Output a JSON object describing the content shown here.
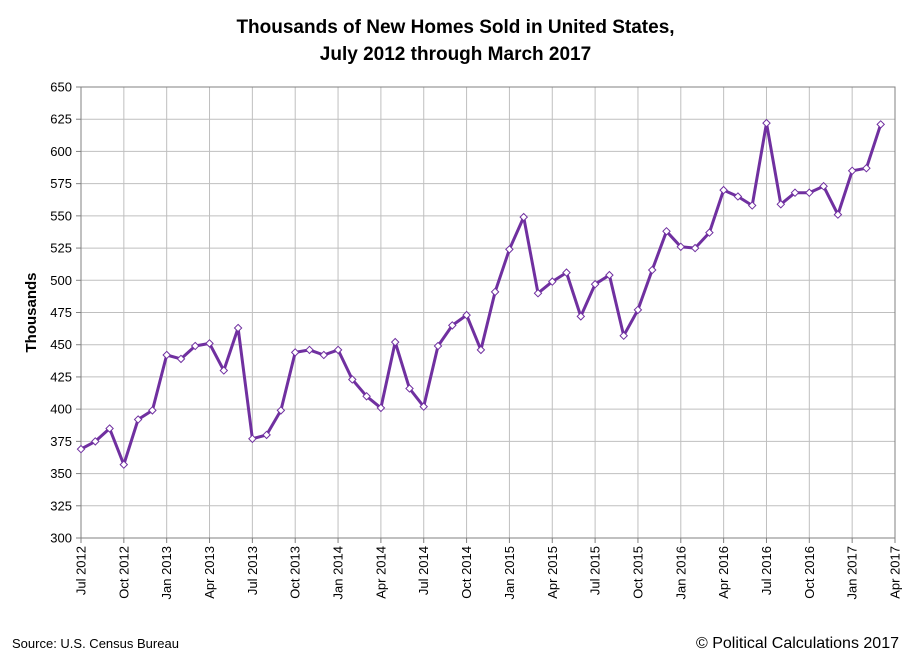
{
  "chart_data": {
    "type": "line",
    "title": [
      "Thousands of New Homes Sold in United States,",
      "July 2012 through March 2017"
    ],
    "ylabel": "Thousands",
    "xlabel": "",
    "ylim": [
      300,
      650
    ],
    "ytick_step": 25,
    "grid": true,
    "series_color": "#7030A0",
    "marker_fill": "#ffffff",
    "xtick_labels": [
      "Jul 2012",
      "Oct 2012",
      "Jan 2013",
      "Apr 2013",
      "Jul 2013",
      "Oct 2013",
      "Jan 2014",
      "Apr 2014",
      "Jul 2014",
      "Oct 2014",
      "Jan 2015",
      "Apr 2015",
      "Jul 2015",
      "Oct 2015",
      "Jan 2016",
      "Apr 2016",
      "Jul 2016",
      "Oct 2016",
      "Jan 2017",
      "Apr 2017"
    ],
    "months_per_tick": 3,
    "series": [
      {
        "name": "New Homes Sold",
        "start": "Jul 2012",
        "values": [
          369,
          375,
          385,
          357,
          392,
          399,
          442,
          439,
          449,
          451,
          430,
          463,
          377,
          380,
          399,
          444,
          446,
          442,
          446,
          423,
          410,
          401,
          452,
          416,
          402,
          449,
          465,
          473,
          446,
          491,
          524,
          549,
          490,
          499,
          506,
          472,
          497,
          504,
          457,
          477,
          508,
          538,
          526,
          525,
          537,
          570,
          565,
          558,
          622,
          559,
          568,
          568,
          573,
          551,
          585,
          587,
          621
        ]
      }
    ]
  },
  "source": "Source:  U.S. Census Bureau",
  "copyright": "© Political Calculations 2017"
}
